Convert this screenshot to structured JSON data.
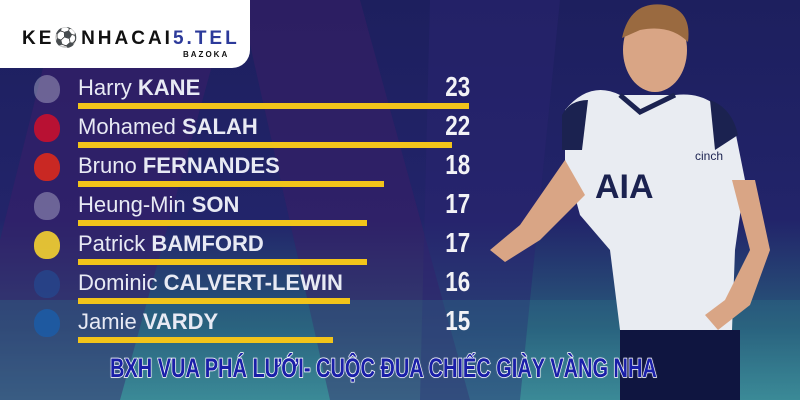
{
  "logo": {
    "name_dark": "KE",
    "name_mid": "NHACAI",
    "name_accent": "5.TEL",
    "sub": "BAZOKA"
  },
  "headline": "BXH VUA PHÁ LƯỚI- CUỘC ĐUA CHIẾC GIÀY VÀNG NHA",
  "player_shirt": {
    "sponsor": "AIA",
    "sleeve": "cinch"
  },
  "colors": {
    "bar": "#f2c41a",
    "background": "#1d1f5e",
    "headline": "#1a1fa8"
  },
  "scorers": [
    {
      "first": "Harry",
      "last": "KANE",
      "goals": "23",
      "value": 23,
      "club": "spurs-crest"
    },
    {
      "first": "Mohamed",
      "last": "SALAH",
      "goals": "22",
      "value": 22,
      "club": "liverpool-crest"
    },
    {
      "first": "Bruno",
      "last": "FERNANDES",
      "goals": "18",
      "value": 18,
      "club": "man-utd-crest"
    },
    {
      "first": "Heung-Min",
      "last": "SON",
      "goals": "17",
      "value": 17,
      "club": "spurs-crest"
    },
    {
      "first": "Patrick",
      "last": "BAMFORD",
      "goals": "17",
      "value": 17,
      "club": "leeds-crest"
    },
    {
      "first": "Dominic",
      "last": "CALVERT-LEWIN",
      "goals": "16",
      "value": 16,
      "club": "everton-crest"
    },
    {
      "first": "Jamie",
      "last": "VARDY",
      "goals": "15",
      "value": 15,
      "club": "leicester-crest"
    }
  ],
  "chart_data": {
    "type": "bar",
    "orientation": "horizontal",
    "categories": [
      "Harry KANE",
      "Mohamed SALAH",
      "Bruno FERNANDES",
      "Heung-Min SON",
      "Patrick BAMFORD",
      "Dominic CALVERT-LEWIN",
      "Jamie VARDY"
    ],
    "values": [
      23,
      22,
      18,
      17,
      17,
      16,
      15
    ]
  }
}
